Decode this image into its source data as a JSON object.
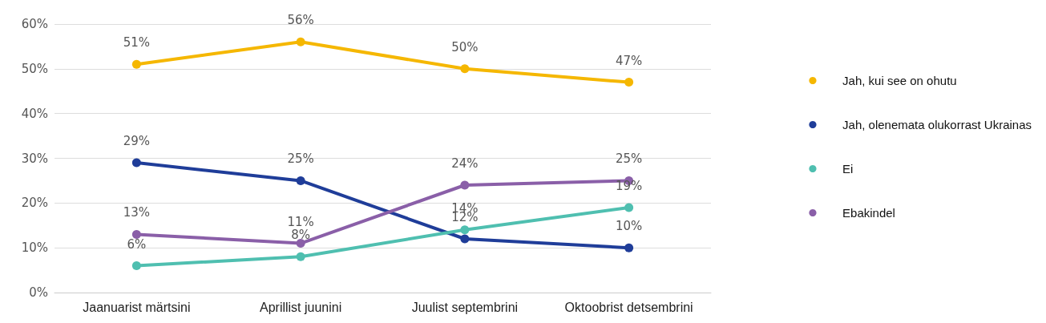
{
  "chart_data": {
    "type": "line",
    "categories": [
      "Jaanuarist märtsini",
      "Aprillist juunini",
      "Juulist septembrini",
      "Oktoobrist detsembrini"
    ],
    "series": [
      {
        "name": "Jah, kui see on ohutu",
        "color": "#f5b700",
        "values": [
          51,
          56,
          50,
          47
        ],
        "value_labels": [
          "51%",
          "56%",
          "50%",
          "47%"
        ]
      },
      {
        "name": "Jah, olenemata olukorrast Ukrainas",
        "color": "#1f3d99",
        "values": [
          29,
          25,
          12,
          10
        ],
        "value_labels": [
          "29%",
          "25%",
          "12%",
          "10%"
        ]
      },
      {
        "name": "Ei",
        "color": "#4fbfb0",
        "values": [
          6,
          8,
          14,
          19
        ],
        "value_labels": [
          "6%",
          "8%",
          "14%",
          "19%"
        ]
      },
      {
        "name": "Ebakindel",
        "color": "#8a5fa8",
        "values": [
          13,
          11,
          24,
          25
        ],
        "value_labels": [
          "13%",
          "11%",
          "24%",
          "25%"
        ]
      }
    ],
    "ylim": [
      0,
      60
    ],
    "yticks": [
      {
        "value": 0,
        "label": "0%"
      },
      {
        "value": 10,
        "label": "10%"
      },
      {
        "value": 20,
        "label": "20%"
      },
      {
        "value": 30,
        "label": "30%"
      },
      {
        "value": 40,
        "label": "40%"
      },
      {
        "value": 50,
        "label": "50%"
      },
      {
        "value": 60,
        "label": "60%"
      }
    ],
    "grid": "y",
    "legend": "right",
    "marker": "circle",
    "line_style": "solid"
  }
}
